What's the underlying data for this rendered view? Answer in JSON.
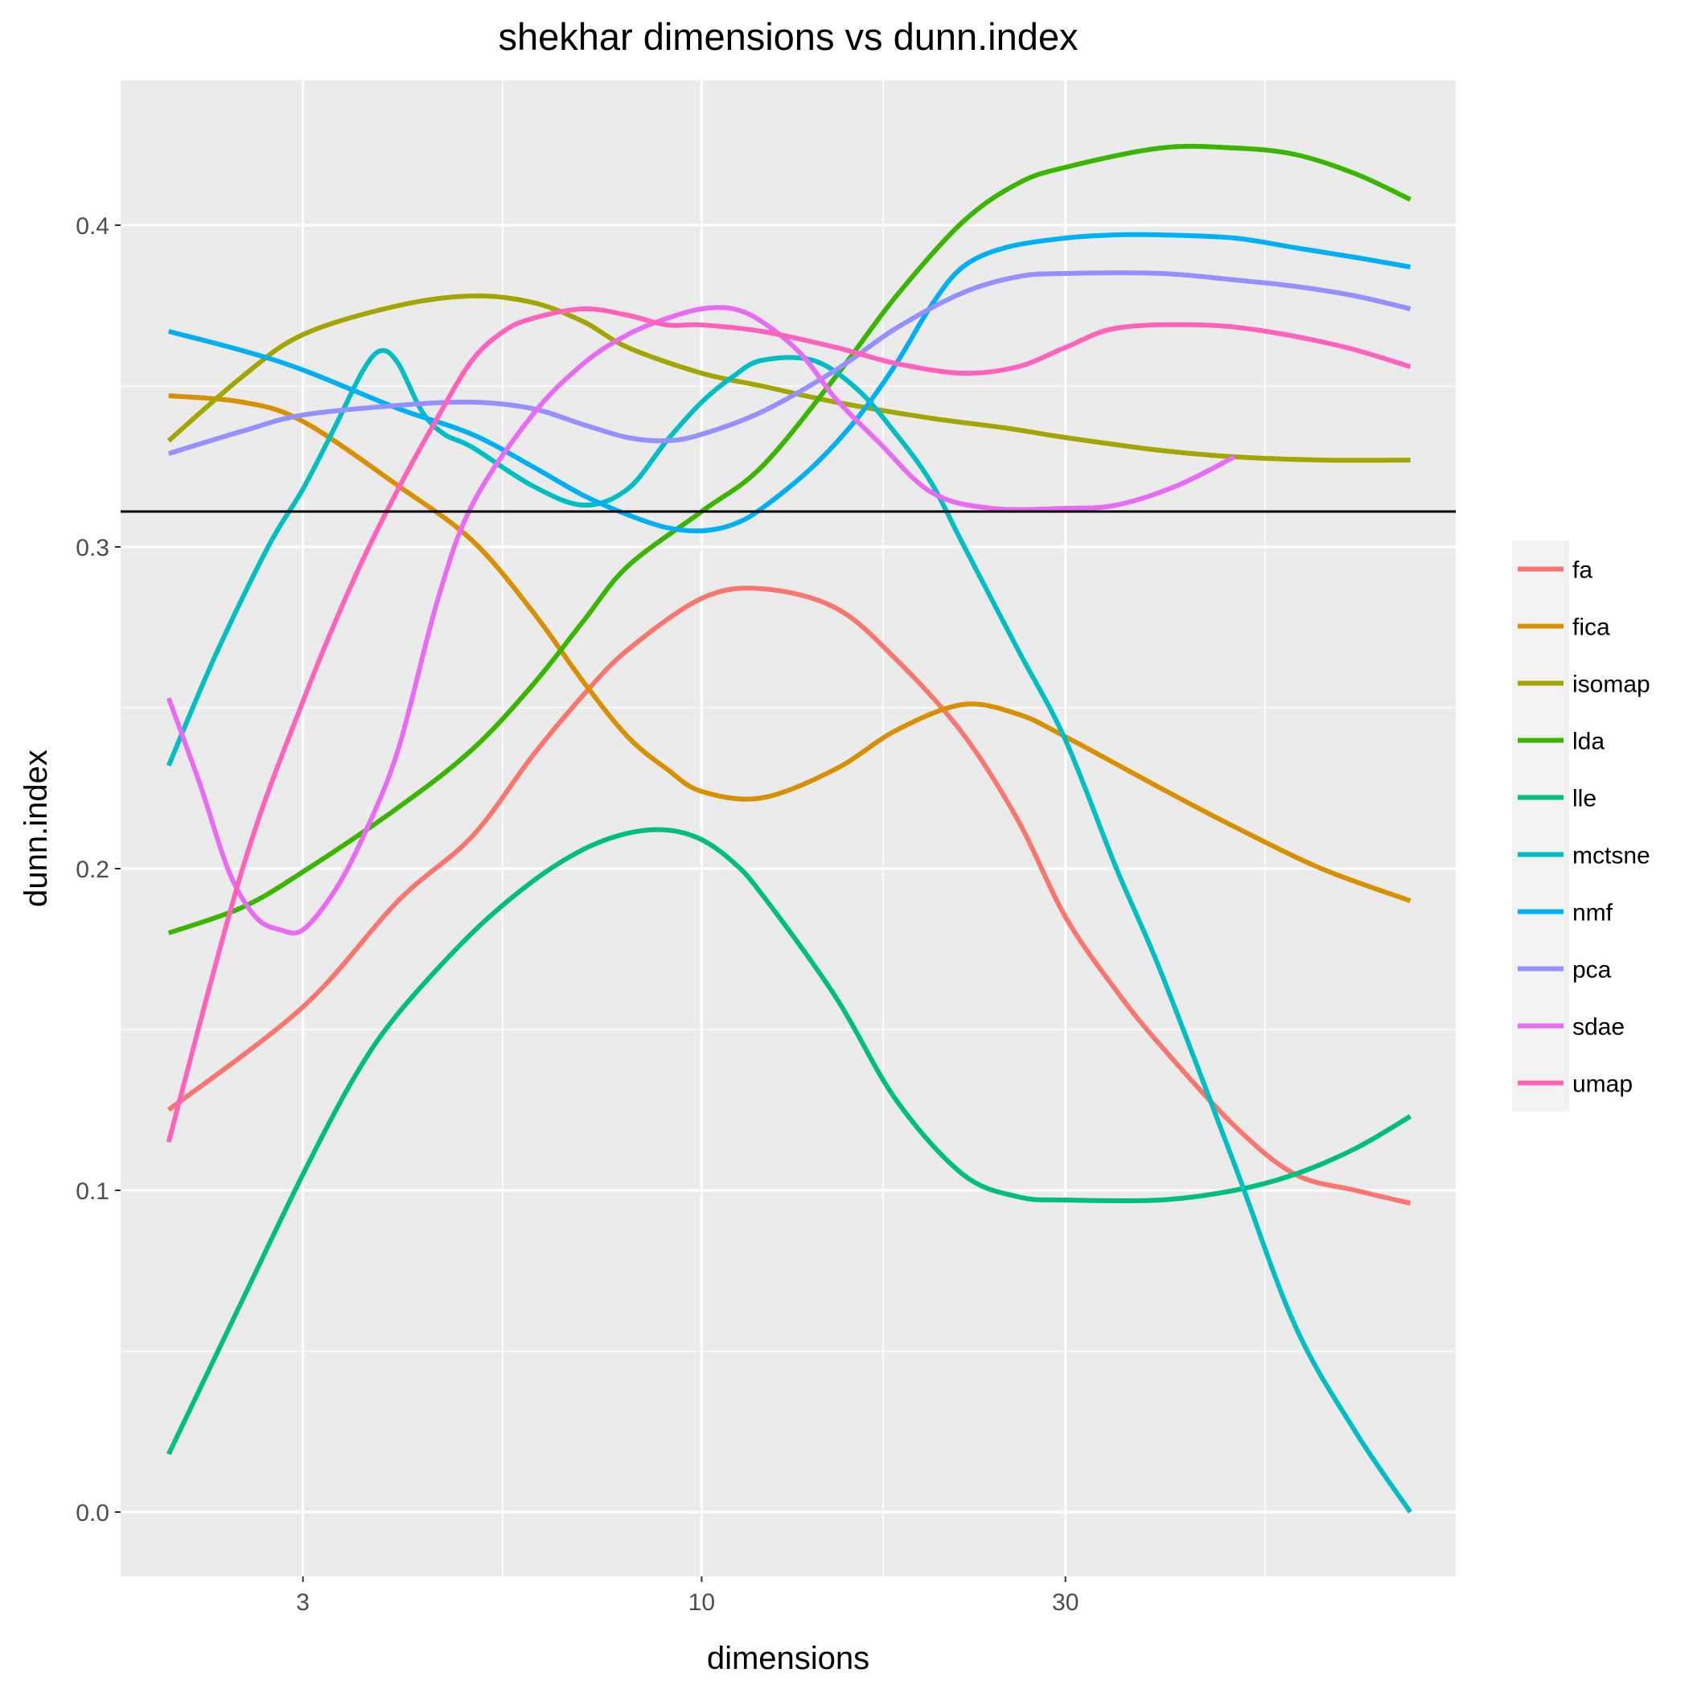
{
  "chart_data": {
    "type": "line",
    "title": "shekhar dimensions vs dunn.index",
    "xlabel": "dimensions",
    "ylabel": "dunn.index",
    "x_scale": "log10",
    "xlim": [
      1.73,
      97.5
    ],
    "ylim": [
      -0.02,
      0.445
    ],
    "x_ticks": [
      3,
      10,
      30
    ],
    "x_tick_labels": [
      "3",
      "10",
      "30"
    ],
    "y_ticks": [
      0.0,
      0.1,
      0.2,
      0.3,
      0.4
    ],
    "y_tick_labels": [
      "0.0",
      "0.1",
      "0.2",
      "0.3",
      "0.4"
    ],
    "x_minor_ticks": [
      5.48,
      17.3,
      54.8
    ],
    "y_minor_ticks": [
      0.05,
      0.15,
      0.25,
      0.35
    ],
    "grid": true,
    "legend_position": "right",
    "reference_line": {
      "y": 0.311,
      "color": "#000000"
    },
    "series": [
      {
        "name": "fa",
        "color": "#F8766D",
        "points": [
          [
            2,
            0.125
          ],
          [
            3,
            0.157
          ],
          [
            4,
            0.19
          ],
          [
            5,
            0.21
          ],
          [
            6,
            0.235
          ],
          [
            7,
            0.254
          ],
          [
            8,
            0.268
          ],
          [
            10,
            0.284
          ],
          [
            12,
            0.287
          ],
          [
            15,
            0.281
          ],
          [
            18,
            0.265
          ],
          [
            22,
            0.242
          ],
          [
            26,
            0.215
          ],
          [
            30,
            0.185
          ],
          [
            35,
            0.162
          ],
          [
            40,
            0.145
          ],
          [
            50,
            0.12
          ],
          [
            60,
            0.105
          ],
          [
            72,
            0.1
          ],
          [
            85,
            0.096
          ]
        ]
      },
      {
        "name": "fica",
        "color": "#D89000",
        "points": [
          [
            2,
            0.347
          ],
          [
            2.5,
            0.345
          ],
          [
            3,
            0.339
          ],
          [
            4,
            0.319
          ],
          [
            5,
            0.302
          ],
          [
            6,
            0.28
          ],
          [
            7,
            0.258
          ],
          [
            8,
            0.241
          ],
          [
            9,
            0.231
          ],
          [
            10,
            0.224
          ],
          [
            12,
            0.222
          ],
          [
            15,
            0.231
          ],
          [
            18,
            0.243
          ],
          [
            22,
            0.251
          ],
          [
            26,
            0.248
          ],
          [
            30,
            0.241
          ],
          [
            40,
            0.225
          ],
          [
            50,
            0.213
          ],
          [
            65,
            0.2
          ],
          [
            85,
            0.19
          ]
        ]
      },
      {
        "name": "isomap",
        "color": "#A3A500",
        "points": [
          [
            2,
            0.333
          ],
          [
            2.5,
            0.353
          ],
          [
            3,
            0.366
          ],
          [
            4,
            0.375
          ],
          [
            5,
            0.378
          ],
          [
            6,
            0.376
          ],
          [
            7,
            0.37
          ],
          [
            8,
            0.362
          ],
          [
            10,
            0.354
          ],
          [
            12,
            0.35
          ],
          [
            15,
            0.345
          ],
          [
            20,
            0.34
          ],
          [
            25,
            0.337
          ],
          [
            30,
            0.334
          ],
          [
            40,
            0.33
          ],
          [
            50,
            0.328
          ],
          [
            65,
            0.327
          ],
          [
            85,
            0.327
          ]
        ]
      },
      {
        "name": "lda",
        "color": "#39B600",
        "points": [
          [
            2,
            0.18
          ],
          [
            2.5,
            0.188
          ],
          [
            3,
            0.199
          ],
          [
            4,
            0.219
          ],
          [
            5,
            0.237
          ],
          [
            6,
            0.257
          ],
          [
            7,
            0.277
          ],
          [
            8,
            0.294
          ],
          [
            10,
            0.311
          ],
          [
            12,
            0.325
          ],
          [
            15,
            0.353
          ],
          [
            18,
            0.378
          ],
          [
            22,
            0.401
          ],
          [
            26,
            0.413
          ],
          [
            30,
            0.418
          ],
          [
            40,
            0.424
          ],
          [
            50,
            0.424
          ],
          [
            60,
            0.422
          ],
          [
            72,
            0.416
          ],
          [
            85,
            0.408
          ]
        ]
      },
      {
        "name": "lle",
        "color": "#00BF7D",
        "points": [
          [
            2,
            0.018
          ],
          [
            2.5,
            0.066
          ],
          [
            3,
            0.105
          ],
          [
            3.5,
            0.135
          ],
          [
            4,
            0.155
          ],
          [
            5,
            0.18
          ],
          [
            6,
            0.196
          ],
          [
            7,
            0.206
          ],
          [
            8,
            0.211
          ],
          [
            9,
            0.212
          ],
          [
            10,
            0.209
          ],
          [
            11,
            0.202
          ],
          [
            12,
            0.192
          ],
          [
            15,
            0.16
          ],
          [
            18,
            0.128
          ],
          [
            22,
            0.105
          ],
          [
            26,
            0.098
          ],
          [
            30,
            0.097
          ],
          [
            40,
            0.097
          ],
          [
            50,
            0.1
          ],
          [
            60,
            0.105
          ],
          [
            72,
            0.113
          ],
          [
            85,
            0.123
          ]
        ]
      },
      {
        "name": "mctsne",
        "color": "#00BFC4",
        "points": [
          [
            2,
            0.232
          ],
          [
            2.3,
            0.266
          ],
          [
            2.7,
            0.3
          ],
          [
            3,
            0.318
          ],
          [
            3.3,
            0.337
          ],
          [
            3.6,
            0.355
          ],
          [
            3.8,
            0.361
          ],
          [
            4,
            0.357
          ],
          [
            4.3,
            0.342
          ],
          [
            4.6,
            0.335
          ],
          [
            5,
            0.331
          ],
          [
            6,
            0.319
          ],
          [
            7,
            0.313
          ],
          [
            8,
            0.318
          ],
          [
            9,
            0.333
          ],
          [
            10,
            0.345
          ],
          [
            11,
            0.353
          ],
          [
            12,
            0.358
          ],
          [
            14,
            0.358
          ],
          [
            16,
            0.349
          ],
          [
            18,
            0.335
          ],
          [
            20,
            0.32
          ],
          [
            22,
            0.301
          ],
          [
            26,
            0.268
          ],
          [
            30,
            0.24
          ],
          [
            35,
            0.2
          ],
          [
            40,
            0.168
          ],
          [
            50,
            0.108
          ],
          [
            60,
            0.058
          ],
          [
            72,
            0.025
          ],
          [
            85,
            0.0
          ]
        ]
      },
      {
        "name": "nmf",
        "color": "#00B0F6",
        "points": [
          [
            2,
            0.367
          ],
          [
            2.5,
            0.361
          ],
          [
            3,
            0.355
          ],
          [
            4,
            0.343
          ],
          [
            5,
            0.335
          ],
          [
            6,
            0.325
          ],
          [
            7,
            0.316
          ],
          [
            8,
            0.31
          ],
          [
            9,
            0.306
          ],
          [
            10,
            0.305
          ],
          [
            11,
            0.307
          ],
          [
            12,
            0.312
          ],
          [
            14,
            0.325
          ],
          [
            16,
            0.34
          ],
          [
            18,
            0.357
          ],
          [
            20,
            0.375
          ],
          [
            22,
            0.387
          ],
          [
            25,
            0.393
          ],
          [
            30,
            0.396
          ],
          [
            35,
            0.397
          ],
          [
            40,
            0.397
          ],
          [
            50,
            0.396
          ],
          [
            60,
            0.393
          ],
          [
            72,
            0.39
          ],
          [
            85,
            0.387
          ]
        ]
      },
      {
        "name": "pca",
        "color": "#9590FF",
        "points": [
          [
            2,
            0.329
          ],
          [
            2.5,
            0.336
          ],
          [
            3,
            0.341
          ],
          [
            4,
            0.344
          ],
          [
            5,
            0.345
          ],
          [
            6,
            0.343
          ],
          [
            7,
            0.338
          ],
          [
            8,
            0.334
          ],
          [
            9,
            0.333
          ],
          [
            10,
            0.335
          ],
          [
            12,
            0.342
          ],
          [
            15,
            0.355
          ],
          [
            18,
            0.368
          ],
          [
            22,
            0.379
          ],
          [
            26,
            0.384
          ],
          [
            30,
            0.385
          ],
          [
            40,
            0.385
          ],
          [
            50,
            0.383
          ],
          [
            60,
            0.381
          ],
          [
            72,
            0.378
          ],
          [
            85,
            0.374
          ]
        ]
      },
      {
        "name": "sdae",
        "color": "#E76BF3",
        "points": [
          [
            2,
            0.253
          ],
          [
            2.2,
            0.226
          ],
          [
            2.4,
            0.199
          ],
          [
            2.6,
            0.185
          ],
          [
            2.8,
            0.181
          ],
          [
            3,
            0.181
          ],
          [
            3.3,
            0.193
          ],
          [
            3.6,
            0.21
          ],
          [
            4,
            0.237
          ],
          [
            4.5,
            0.283
          ],
          [
            5,
            0.313
          ],
          [
            6,
            0.341
          ],
          [
            7,
            0.357
          ],
          [
            8,
            0.366
          ],
          [
            9,
            0.371
          ],
          [
            10,
            0.374
          ],
          [
            11,
            0.374
          ],
          [
            12,
            0.37
          ],
          [
            13.5,
            0.36
          ],
          [
            15,
            0.346
          ],
          [
            17,
            0.333
          ],
          [
            20,
            0.317
          ],
          [
            24,
            0.312
          ],
          [
            30,
            0.312
          ],
          [
            35,
            0.313
          ],
          [
            42,
            0.319
          ],
          [
            50,
            0.328
          ]
        ]
      },
      {
        "name": "umap",
        "color": "#FF62BC",
        "points": [
          [
            2,
            0.115
          ],
          [
            2.5,
            0.2
          ],
          [
            3,
            0.252
          ],
          [
            3.5,
            0.29
          ],
          [
            4,
            0.318
          ],
          [
            4.5,
            0.34
          ],
          [
            5,
            0.358
          ],
          [
            5.5,
            0.367
          ],
          [
            6,
            0.371
          ],
          [
            7,
            0.374
          ],
          [
            8,
            0.372
          ],
          [
            9,
            0.369
          ],
          [
            10,
            0.369
          ],
          [
            12,
            0.367
          ],
          [
            15,
            0.362
          ],
          [
            18,
            0.357
          ],
          [
            22,
            0.354
          ],
          [
            26,
            0.356
          ],
          [
            30,
            0.362
          ],
          [
            35,
            0.368
          ],
          [
            45,
            0.369
          ],
          [
            55,
            0.367
          ],
          [
            70,
            0.362
          ],
          [
            85,
            0.356
          ]
        ]
      }
    ]
  }
}
